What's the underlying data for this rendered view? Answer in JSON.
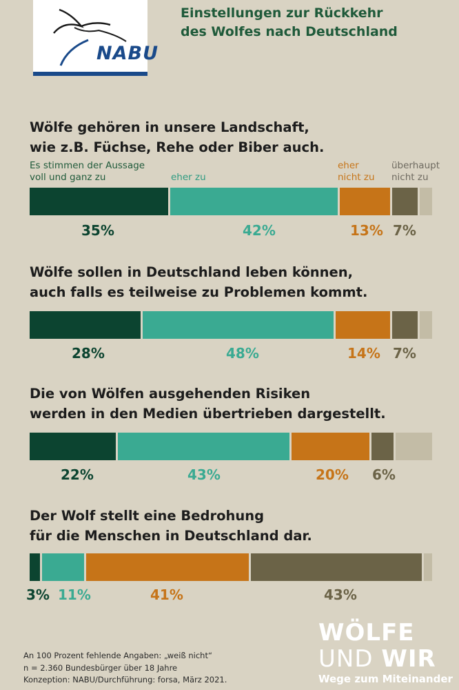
{
  "header": {
    "logo_text": "NABU",
    "title_lines": [
      "Einstellungen zur Rückkehr",
      "des Wolfes nach Deutschland"
    ]
  },
  "legend": {
    "full": [
      "Es stimmen der Aussage",
      "voll und ganz zu"
    ],
    "rather": [
      "eher zu"
    ],
    "rather_not": [
      "eher",
      "nicht zu"
    ],
    "not_at_all": [
      "überhaupt",
      "nicht zu"
    ]
  },
  "colors": {
    "full": "#0c4430",
    "rather": "#3aaa92",
    "rather_not": "#c67418",
    "not_at_all": "#6b6347",
    "unknown": "#c3bca6"
  },
  "chart_data": {
    "type": "bar",
    "orientation": "horizontal-stacked",
    "legend_placement": "top",
    "categories": [
      "Wölfe gehören in unsere Landschaft, wie z.B. Füchse, Rehe oder Biber auch.",
      "Wölfe sollen in Deutschland leben können, auch falls es teilweise zu Problemen kommt.",
      "Die von Wölfen ausgehenden Risiken werden in den Medien übertrieben dargestellt.",
      "Der Wolf stellt eine Bedrohung für die Menschen in Deutschland dar."
    ],
    "series": [
      {
        "name": "Es stimmen der Aussage voll und ganz zu",
        "values": [
          35,
          28,
          22,
          3
        ]
      },
      {
        "name": "eher zu",
        "values": [
          42,
          48,
          43,
          11
        ]
      },
      {
        "name": "eher nicht zu",
        "values": [
          13,
          14,
          20,
          41
        ]
      },
      {
        "name": "überhaupt nicht zu",
        "values": [
          7,
          7,
          6,
          43
        ]
      }
    ],
    "unit": "%",
    "xlim": [
      0,
      100
    ],
    "questions": [
      {
        "lines": [
          "Wölfe gehören in unsere Landschaft,",
          "wie z.B. Füchse, Rehe oder Biber auch."
        ],
        "labels": [
          "35%",
          "42%",
          "13%",
          "7%"
        ]
      },
      {
        "lines": [
          "Wölfe sollen in Deutschland leben können,",
          "auch falls es teilweise zu Problemen kommt."
        ],
        "labels": [
          "28%",
          "48%",
          "14%",
          "7%"
        ]
      },
      {
        "lines": [
          "Die von Wölfen ausgehenden Risiken",
          "werden in den Medien übertrieben dargestellt."
        ],
        "labels": [
          "22%",
          "43%",
          "20%",
          "6%"
        ]
      },
      {
        "lines": [
          "Der Wolf stellt eine Bedrohung",
          "für die Menschen in Deutschland dar."
        ],
        "labels": [
          "3%",
          "11%",
          "41%",
          "43%"
        ]
      }
    ]
  },
  "footnote": [
    "An 100 Prozent fehlende Angaben: „weiß nicht“",
    "n = 2.360 Bundesbürger über 18 Jahre",
    "Konzeption: NABU/Durchführung: forsa, März 2021."
  ],
  "brand": {
    "line1": "WÖLFE",
    "line2_a": "UND ",
    "line2_b": "WIR",
    "line3": "Wege zum Miteinander"
  }
}
